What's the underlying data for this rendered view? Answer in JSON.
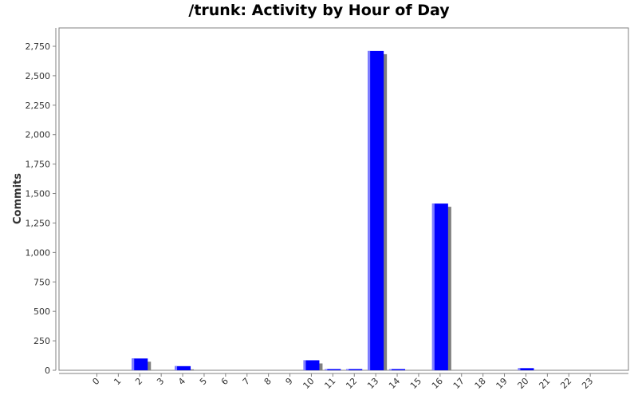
{
  "chart_data": {
    "type": "bar",
    "title": "/trunk: Activity by Hour of Day",
    "xlabel": "",
    "ylabel": "Commits",
    "categories": [
      "0",
      "1",
      "2",
      "3",
      "4",
      "5",
      "6",
      "7",
      "8",
      "9",
      "10",
      "11",
      "12",
      "13",
      "14",
      "15",
      "16",
      "17",
      "18",
      "19",
      "20",
      "21",
      "22",
      "23"
    ],
    "values": [
      0,
      0,
      100,
      0,
      35,
      0,
      0,
      0,
      0,
      0,
      85,
      5,
      10,
      2710,
      10,
      0,
      1415,
      0,
      0,
      0,
      18,
      0,
      0,
      0
    ],
    "ylim": [
      0,
      2900
    ],
    "yticks": [
      0,
      250,
      500,
      750,
      1000,
      1250,
      1500,
      1750,
      2000,
      2250,
      2500,
      2750
    ],
    "ytick_labels": [
      "0",
      "250",
      "500",
      "750",
      "1,000",
      "1,250",
      "1,500",
      "1,750",
      "2,000",
      "2,250",
      "2,500",
      "2,750"
    ],
    "bar_color": "#0000ff",
    "shadow_color": "#808080",
    "grid": false,
    "legend": "none"
  }
}
